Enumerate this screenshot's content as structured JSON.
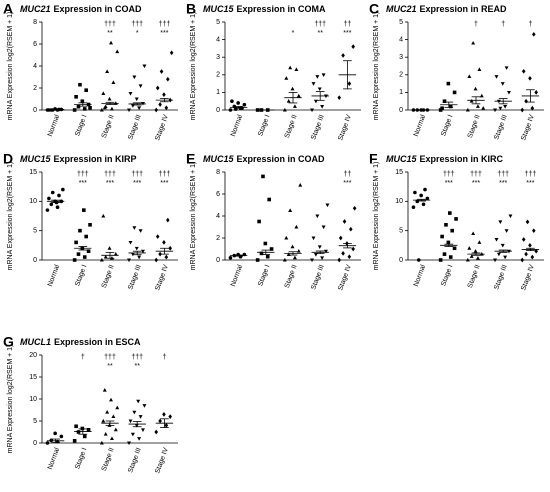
{
  "chart_data": [
    {
      "type": "dot",
      "letter": "A",
      "gene": "MUC21",
      "title": "Expression in COAD",
      "ylabel": "mRNA Expression log2(RSEM + 1)",
      "categories": [
        "Normal",
        "Stage I",
        "Stage II",
        "Stage III",
        "Stage IV"
      ],
      "points": [
        [
          0,
          0,
          0,
          0.05,
          0.1,
          0,
          0.05,
          0
        ],
        [
          0,
          0.1,
          0.3,
          0.5,
          0.8,
          1.2,
          1.8,
          2.3,
          0.2
        ],
        [
          0,
          0.1,
          0.3,
          0.6,
          1,
          1.5,
          2.5,
          3.5,
          5.3,
          6.1,
          0.2
        ],
        [
          0,
          0.2,
          0.4,
          0.6,
          1,
          1.5,
          2.2,
          3,
          4
        ],
        [
          0,
          0.2,
          0.5,
          0.9,
          1.4,
          2,
          2.8,
          3.5,
          5.2
        ]
      ],
      "means": [
        0.05,
        0.5,
        0.6,
        0.55,
        0.9
      ],
      "sems": [
        0.02,
        0.15,
        0.1,
        0.1,
        0.15
      ],
      "stars": [
        null,
        null,
        "**",
        "*",
        "***"
      ],
      "daggers": [
        null,
        null,
        "†††",
        "†††",
        "†††"
      ],
      "ylim": [
        0,
        8
      ],
      "yticks": [
        0,
        2,
        4,
        6,
        8
      ]
    },
    {
      "type": "dot",
      "letter": "B",
      "gene": "MUC15",
      "title": "Expression in COMA",
      "ylabel": "mRNA Expression log2(RSEM + 1)",
      "categories": [
        "Normal",
        "Stage I",
        "Stage II",
        "Stage III",
        "Stage IV"
      ],
      "points": [
        [
          0,
          0.1,
          0.2,
          0.3,
          0.4,
          0.5,
          0.1,
          0.05
        ],
        [
          0,
          0,
          0
        ],
        [
          0,
          0.2,
          0.5,
          0.8,
          1.2,
          1.8,
          2.3,
          2.4
        ],
        [
          0,
          0.2,
          0.5,
          0.8,
          1.2,
          1.5,
          2,
          1.9
        ],
        [
          0.7,
          1.5,
          3.1,
          3.6
        ]
      ],
      "means": [
        0.15,
        0,
        0.7,
        0.8,
        2.0
      ],
      "sems": [
        0.05,
        0,
        0.3,
        0.25,
        0.8
      ],
      "stars": [
        null,
        null,
        "*",
        "**",
        "***"
      ],
      "daggers": [
        null,
        null,
        null,
        "†††",
        "††"
      ],
      "ylim": [
        0,
        5
      ],
      "yticks": [
        0,
        1,
        2,
        3,
        4,
        5
      ]
    },
    {
      "type": "dot",
      "letter": "C",
      "gene": "MUC21",
      "title": "Expression in READ",
      "ylabel": "mRNA Expression log2(RSEM + 1)",
      "categories": [
        "Normal",
        "Stage I",
        "Stage II",
        "Stage III",
        "Stage IV"
      ],
      "points": [
        [
          0,
          0,
          0,
          0,
          0
        ],
        [
          0,
          0.2,
          0.5,
          1,
          1.5,
          0.1
        ],
        [
          0,
          0.2,
          0.5,
          0.8,
          1.2,
          1.9,
          2.3,
          3.8,
          0.1
        ],
        [
          0,
          0.2,
          0.5,
          1,
          1.5,
          1.9,
          2.4,
          0.1
        ],
        [
          0,
          0.1,
          0.5,
          1,
          1.8,
          2.2,
          4.3
        ]
      ],
      "means": [
        0,
        0.3,
        0.55,
        0.5,
        0.8
      ],
      "sems": [
        0,
        0.15,
        0.2,
        0.15,
        0.35
      ],
      "stars": [
        null,
        null,
        null,
        null,
        null
      ],
      "daggers": [
        null,
        null,
        "†",
        "†",
        "†"
      ],
      "ylim": [
        0,
        5
      ],
      "yticks": [
        0,
        1,
        2,
        3,
        4,
        5
      ]
    },
    {
      "type": "dot",
      "letter": "D",
      "gene": "MUC15",
      "title": "Expression in KIRP",
      "ylabel": "mRNA Expression log2(RSEM + 1)",
      "categories": [
        "Normal",
        "Stage I",
        "Stage II",
        "Stage III",
        "Stage IV"
      ],
      "points": [
        [
          8.5,
          9,
          9.5,
          10,
          10,
          10.5,
          11,
          11.5,
          12,
          9.8
        ],
        [
          0,
          0.5,
          1,
          1.5,
          2,
          3,
          4,
          5,
          6,
          8.5
        ],
        [
          0,
          0.3,
          0.5,
          1,
          2,
          7.5
        ],
        [
          0,
          0.5,
          1,
          1.5,
          2,
          3,
          5,
          5.5
        ],
        [
          0,
          0.5,
          1,
          2,
          3,
          4,
          6.8
        ]
      ],
      "means": [
        10,
        2,
        0.8,
        1.2,
        1.5
      ],
      "sems": [
        0.2,
        0.3,
        0.5,
        0.3,
        0.5
      ],
      "stars": [
        null,
        "***",
        "***",
        "***",
        "***"
      ],
      "daggers": [
        null,
        "†††",
        "†††",
        "†††",
        "†††"
      ],
      "ylim": [
        0,
        15
      ],
      "yticks": [
        0,
        5,
        10,
        15
      ]
    },
    {
      "type": "dot",
      "letter": "E",
      "gene": "MUC15",
      "title": "Expression in COAD",
      "ylabel": "mRNA Expression log2(RSEM + 1)",
      "categories": [
        "Normal",
        "Stage I",
        "Stage II",
        "Stage III",
        "Stage IV"
      ],
      "points": [
        [
          0.2,
          0.3,
          0.4,
          0.5,
          0.5
        ],
        [
          0,
          0.3,
          0.6,
          1,
          1.5,
          3.5,
          5.5,
          7.6
        ],
        [
          0,
          0.2,
          0.5,
          0.8,
          1.2,
          2,
          3,
          4.5,
          6.8
        ],
        [
          0,
          0.2,
          0.5,
          0.8,
          1.2,
          2,
          3,
          4,
          5
        ],
        [
          0,
          0.3,
          0.6,
          1,
          1.5,
          2,
          2.8,
          3.5,
          4.7
        ]
      ],
      "means": [
        0.4,
        0.7,
        0.6,
        0.7,
        1.3
      ],
      "sems": [
        0.05,
        0.2,
        0.15,
        0.12,
        0.2
      ],
      "stars": [
        null,
        null,
        null,
        null,
        "***"
      ],
      "daggers": [
        null,
        null,
        null,
        null,
        "††"
      ],
      "ylim": [
        0,
        8
      ],
      "yticks": [
        0,
        2,
        4,
        6,
        8
      ]
    },
    {
      "type": "dot",
      "letter": "F",
      "gene": "MUC15",
      "title": "Expression in KIRC",
      "ylabel": "mRNA Expression log2(RSEM + 1)",
      "categories": [
        "Normal",
        "Stage I",
        "Stage II",
        "Stage III",
        "Stage IV"
      ],
      "points": [
        [
          9,
          9.5,
          10,
          10.5,
          11,
          11.5,
          12,
          0
        ],
        [
          0,
          0.5,
          1,
          2,
          3,
          4,
          5,
          6,
          7,
          8
        ],
        [
          0,
          0.3,
          0.6,
          1,
          1.5,
          2,
          3,
          4.5
        ],
        [
          0,
          0.5,
          1,
          1.5,
          2.5,
          3.5,
          5,
          6.5,
          7.5
        ],
        [
          0,
          0.5,
          1,
          1.5,
          2.5,
          3.5,
          5,
          6.5
        ]
      ],
      "means": [
        10.2,
        2.5,
        1,
        1.5,
        1.8
      ],
      "sems": [
        0.15,
        0.2,
        0.2,
        0.2,
        0.2
      ],
      "stars": [
        null,
        "***",
        "***",
        "***",
        "***"
      ],
      "daggers": [
        null,
        "†††",
        "†††",
        "†††",
        "†††"
      ],
      "ylim": [
        0,
        15
      ],
      "yticks": [
        0,
        5,
        10,
        15
      ]
    },
    {
      "type": "dot",
      "letter": "G",
      "gene": "MUCL1",
      "title": "Expression in ESCA",
      "ylabel": "mRNA Expression log2(RSEM + 1)",
      "categories": [
        "Normal",
        "Stage I",
        "Stage II",
        "Stage III",
        "Stage IV"
      ],
      "points": [
        [
          0,
          0.3,
          0.6,
          1.5,
          2.2
        ],
        [
          0.5,
          1.5,
          2.5,
          3,
          3.3,
          3.8
        ],
        [
          0,
          1,
          2,
          3,
          4,
          5,
          6,
          7,
          8,
          9.8,
          12
        ],
        [
          0,
          1,
          2,
          3,
          4,
          5,
          6,
          7,
          8.5,
          9.5
        ],
        [
          2.5,
          4,
          5,
          6,
          6.5
        ]
      ],
      "means": [
        0.5,
        2.6,
        4.5,
        4.3,
        4.5
      ],
      "sems": [
        0.4,
        0.6,
        0.5,
        0.6,
        1.0
      ],
      "stars": [
        null,
        null,
        "**",
        "**",
        null
      ],
      "daggers": [
        null,
        "†",
        "†††",
        "†††",
        "†"
      ],
      "ylim": [
        0,
        20
      ],
      "yticks": [
        0,
        5,
        10,
        15,
        20
      ]
    }
  ],
  "markers": [
    "circle",
    "square",
    "triangle",
    "triangle-down",
    "diamond"
  ]
}
